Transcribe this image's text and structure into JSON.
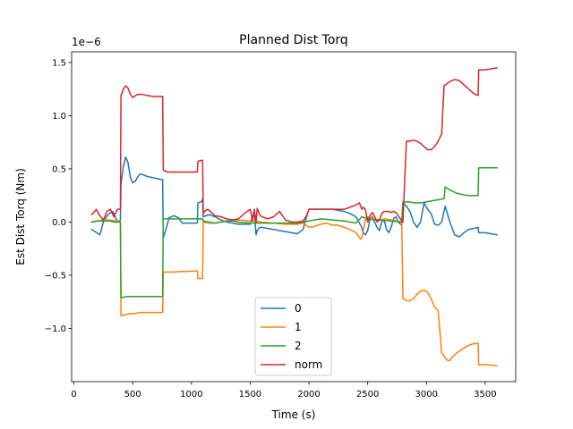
{
  "chart_data": {
    "type": "line",
    "title": "Planned Dist Torq",
    "xlabel": "Time (s)",
    "ylabel": "Est Dist Torq (Nm)",
    "y_offset_text": "1e−6",
    "y_scale": 1e-06,
    "xlim": [
      -20,
      3760
    ],
    "ylim": [
      -1.5,
      1.6
    ],
    "x_ticks": [
      0,
      500,
      1000,
      1500,
      2000,
      2500,
      3000,
      3500
    ],
    "x_tick_labels": [
      "0",
      "500",
      "1000",
      "1500",
      "2000",
      "2500",
      "3000",
      "3500"
    ],
    "y_ticks": [
      -1.0,
      -0.5,
      0.0,
      0.5,
      1.0,
      1.5
    ],
    "y_tick_labels": [
      "−1.0",
      "−0.5",
      "0.0",
      "0.5",
      "1.0",
      "1.5"
    ],
    "grid": false,
    "legend": {
      "position": "lower-center"
    },
    "series": [
      {
        "name": "0",
        "color": "#1f77b4",
        "x": [
          150,
          180,
          220,
          250,
          290,
          330,
          370,
          395,
          400,
          405,
          420,
          440,
          460,
          480,
          500,
          520,
          540,
          560,
          580,
          620,
          660,
          700,
          740,
          755,
          760,
          780,
          810,
          850,
          890,
          920,
          950,
          1000,
          1050,
          1055,
          1080,
          1090,
          1095,
          1100,
          1150,
          1200,
          1250,
          1300,
          1350,
          1400,
          1450,
          1500,
          1520,
          1535,
          1550,
          1560,
          1580,
          1600,
          1650,
          1700,
          1750,
          1800,
          1850,
          1900,
          1950,
          1980,
          2000,
          2050,
          2100,
          2150,
          2200,
          2250,
          2300,
          2350,
          2400,
          2450,
          2460,
          2480,
          2500,
          2520,
          2540,
          2560,
          2580,
          2600,
          2620,
          2640,
          2660,
          2680,
          2700,
          2720,
          2740,
          2760,
          2790,
          2800,
          2830,
          2860,
          2890,
          2920,
          2950,
          2980,
          3010,
          3040,
          3070,
          3100,
          3130,
          3160,
          3200,
          3240,
          3280,
          3320,
          3360,
          3400,
          3440,
          3445,
          3500,
          3600
        ],
        "y": [
          -0.07,
          -0.09,
          -0.12,
          0.0,
          0.07,
          0.1,
          0.0,
          0.02,
          0.35,
          0.4,
          0.52,
          0.61,
          0.56,
          0.42,
          0.37,
          0.38,
          0.42,
          0.45,
          0.45,
          0.43,
          0.42,
          0.41,
          0.4,
          0.4,
          -0.15,
          -0.08,
          0.04,
          0.06,
          0.04,
          -0.01,
          -0.01,
          -0.01,
          -0.01,
          0.18,
          0.19,
          0.2,
          0.22,
          0.05,
          0.07,
          0.05,
          0.02,
          0.0,
          -0.01,
          -0.02,
          -0.02,
          -0.02,
          0.05,
          0.1,
          -0.12,
          -0.08,
          -0.05,
          -0.05,
          -0.06,
          -0.07,
          -0.08,
          -0.09,
          -0.1,
          -0.11,
          -0.07,
          0.05,
          0.12,
          0.12,
          0.12,
          0.12,
          0.12,
          0.11,
          0.1,
          0.08,
          0.05,
          -0.05,
          -0.1,
          -0.12,
          -0.08,
          0.03,
          0.05,
          0.0,
          -0.05,
          -0.08,
          0.0,
          0.02,
          -0.07,
          -0.1,
          -0.05,
          0.03,
          0.05,
          0.0,
          -0.03,
          0.18,
          0.15,
          0.1,
          0.0,
          -0.05,
          0.0,
          0.18,
          0.12,
          0.08,
          -0.02,
          -0.03,
          0.0,
          0.15,
          0.0,
          -0.12,
          -0.14,
          -0.1,
          -0.07,
          -0.06,
          -0.05,
          -0.1,
          -0.1,
          -0.12
        ]
      },
      {
        "name": "1",
        "color": "#ff7f0e",
        "x": [
          150,
          200,
          250,
          300,
          350,
          395,
          400,
          405,
          440,
          480,
          520,
          560,
          600,
          650,
          700,
          750,
          755,
          760,
          800,
          850,
          900,
          950,
          1000,
          1050,
          1055,
          1080,
          1095,
          1100,
          1150,
          1200,
          1250,
          1300,
          1400,
          1500,
          1600,
          1700,
          1800,
          1900,
          1950,
          2000,
          2050,
          2100,
          2150,
          2200,
          2250,
          2300,
          2350,
          2400,
          2440,
          2450,
          2480,
          2500,
          2550,
          2600,
          2650,
          2700,
          2750,
          2790,
          2800,
          2810,
          2830,
          2860,
          2890,
          2920,
          2950,
          2980,
          3010,
          3040,
          3070,
          3100,
          3130,
          3150,
          3160,
          3180,
          3200,
          3220,
          3260,
          3300,
          3340,
          3380,
          3420,
          3440,
          3445,
          3500,
          3600
        ],
        "y": [
          0.0,
          0.01,
          0.02,
          0.02,
          0.01,
          0.01,
          -0.88,
          -0.88,
          -0.87,
          -0.86,
          -0.86,
          -0.85,
          -0.85,
          -0.85,
          -0.85,
          -0.85,
          -0.85,
          -0.47,
          -0.47,
          -0.47,
          -0.465,
          -0.465,
          -0.46,
          -0.46,
          -0.53,
          -0.53,
          -0.53,
          0.0,
          -0.01,
          -0.01,
          0.0,
          0.01,
          0.02,
          0.01,
          0.0,
          -0.01,
          -0.02,
          -0.02,
          -0.01,
          -0.05,
          -0.04,
          -0.02,
          -0.01,
          -0.03,
          -0.03,
          -0.05,
          -0.07,
          -0.1,
          -0.16,
          -0.15,
          0.02,
          0.05,
          0.03,
          0.02,
          0.03,
          0.02,
          0.01,
          0.0,
          -0.72,
          -0.72,
          -0.74,
          -0.74,
          -0.72,
          -0.68,
          -0.65,
          -0.64,
          -0.66,
          -0.72,
          -0.8,
          -0.83,
          -1.23,
          -1.26,
          -1.28,
          -1.3,
          -1.3,
          -1.27,
          -1.23,
          -1.2,
          -1.17,
          -1.15,
          -1.14,
          -1.14,
          -1.34,
          -1.34,
          -1.35
        ]
      },
      {
        "name": "2",
        "color": "#2ca02c",
        "x": [
          150,
          200,
          250,
          300,
          350,
          395,
          400,
          405,
          450,
          500,
          550,
          600,
          650,
          700,
          755,
          760,
          800,
          850,
          900,
          950,
          1000,
          1050,
          1055,
          1080,
          1095,
          1100,
          1150,
          1200,
          1250,
          1300,
          1350,
          1400,
          1500,
          1600,
          1700,
          1800,
          1900,
          2000,
          2050,
          2100,
          2200,
          2300,
          2400,
          2450,
          2500,
          2550,
          2600,
          2700,
          2790,
          2800,
          2850,
          2900,
          2950,
          3000,
          3050,
          3100,
          3150,
          3160,
          3200,
          3260,
          3300,
          3350,
          3400,
          3440,
          3445,
          3500,
          3600
        ],
        "y": [
          0.0,
          0.01,
          0.01,
          0.01,
          0.0,
          0.0,
          -0.71,
          -0.71,
          -0.7,
          -0.7,
          -0.7,
          -0.7,
          -0.7,
          -0.7,
          -0.7,
          0.03,
          0.03,
          0.03,
          0.03,
          0.03,
          0.03,
          0.03,
          0.03,
          0.03,
          0.03,
          0.01,
          0.0,
          -0.01,
          0.0,
          0.01,
          0.01,
          0.0,
          -0.01,
          -0.01,
          -0.01,
          -0.01,
          -0.01,
          0.01,
          0.02,
          0.03,
          0.02,
          0.01,
          -0.01,
          0.05,
          0.03,
          0.02,
          0.02,
          0.01,
          0.0,
          0.19,
          0.19,
          0.18,
          0.18,
          0.19,
          0.2,
          0.21,
          0.22,
          0.33,
          0.3,
          0.27,
          0.26,
          0.25,
          0.25,
          0.25,
          0.51,
          0.51,
          0.51
        ]
      },
      {
        "name": "norm",
        "color": "#d62728",
        "x": [
          150,
          170,
          190,
          220,
          250,
          280,
          310,
          340,
          370,
          395,
          400,
          405,
          420,
          440,
          460,
          480,
          500,
          540,
          580,
          620,
          680,
          740,
          755,
          760,
          800,
          850,
          900,
          950,
          1000,
          1050,
          1055,
          1080,
          1095,
          1100,
          1120,
          1140,
          1160,
          1200,
          1250,
          1300,
          1350,
          1400,
          1450,
          1500,
          1520,
          1535,
          1550,
          1560,
          1580,
          1600,
          1650,
          1700,
          1750,
          1800,
          1850,
          1900,
          1950,
          1980,
          2000,
          2050,
          2100,
          2150,
          2200,
          2250,
          2300,
          2350,
          2400,
          2430,
          2450,
          2460,
          2480,
          2500,
          2520,
          2540,
          2560,
          2580,
          2600,
          2620,
          2640,
          2660,
          2680,
          2700,
          2720,
          2740,
          2760,
          2790,
          2800,
          2830,
          2860,
          2890,
          2920,
          2950,
          2980,
          3010,
          3040,
          3070,
          3100,
          3130,
          3150,
          3160,
          3200,
          3240,
          3280,
          3320,
          3360,
          3400,
          3440,
          3445,
          3500,
          3600
        ],
        "y": [
          0.07,
          0.09,
          0.12,
          0.06,
          0.02,
          0.1,
          0.12,
          0.05,
          0.12,
          0.12,
          1.19,
          1.2,
          1.25,
          1.28,
          1.26,
          1.2,
          1.17,
          1.2,
          1.2,
          1.19,
          1.18,
          1.18,
          1.18,
          0.49,
          0.47,
          0.47,
          0.47,
          0.47,
          0.47,
          0.47,
          0.57,
          0.58,
          0.58,
          0.08,
          0.11,
          0.12,
          0.1,
          0.06,
          0.05,
          0.03,
          0.02,
          0.03,
          0.08,
          0.12,
          0.01,
          0.12,
          0.0,
          0.13,
          0.07,
          0.05,
          0.03,
          0.05,
          0.1,
          0.02,
          0.0,
          0.0,
          0.01,
          0.06,
          0.12,
          0.12,
          0.12,
          0.12,
          0.12,
          0.12,
          0.12,
          0.14,
          0.16,
          0.18,
          0.12,
          0.14,
          0.12,
          0.0,
          0.06,
          0.09,
          0.05,
          0.0,
          0.02,
          0.08,
          0.1,
          0.1,
          0.1,
          0.09,
          0.1,
          0.09,
          0.06,
          0.01,
          0.0,
          0.76,
          0.76,
          0.77,
          0.76,
          0.74,
          0.71,
          0.68,
          0.68,
          0.71,
          0.76,
          0.83,
          1.28,
          1.29,
          1.32,
          1.34,
          1.33,
          1.29,
          1.25,
          1.21,
          1.19,
          1.43,
          1.43,
          1.45
        ]
      }
    ]
  }
}
